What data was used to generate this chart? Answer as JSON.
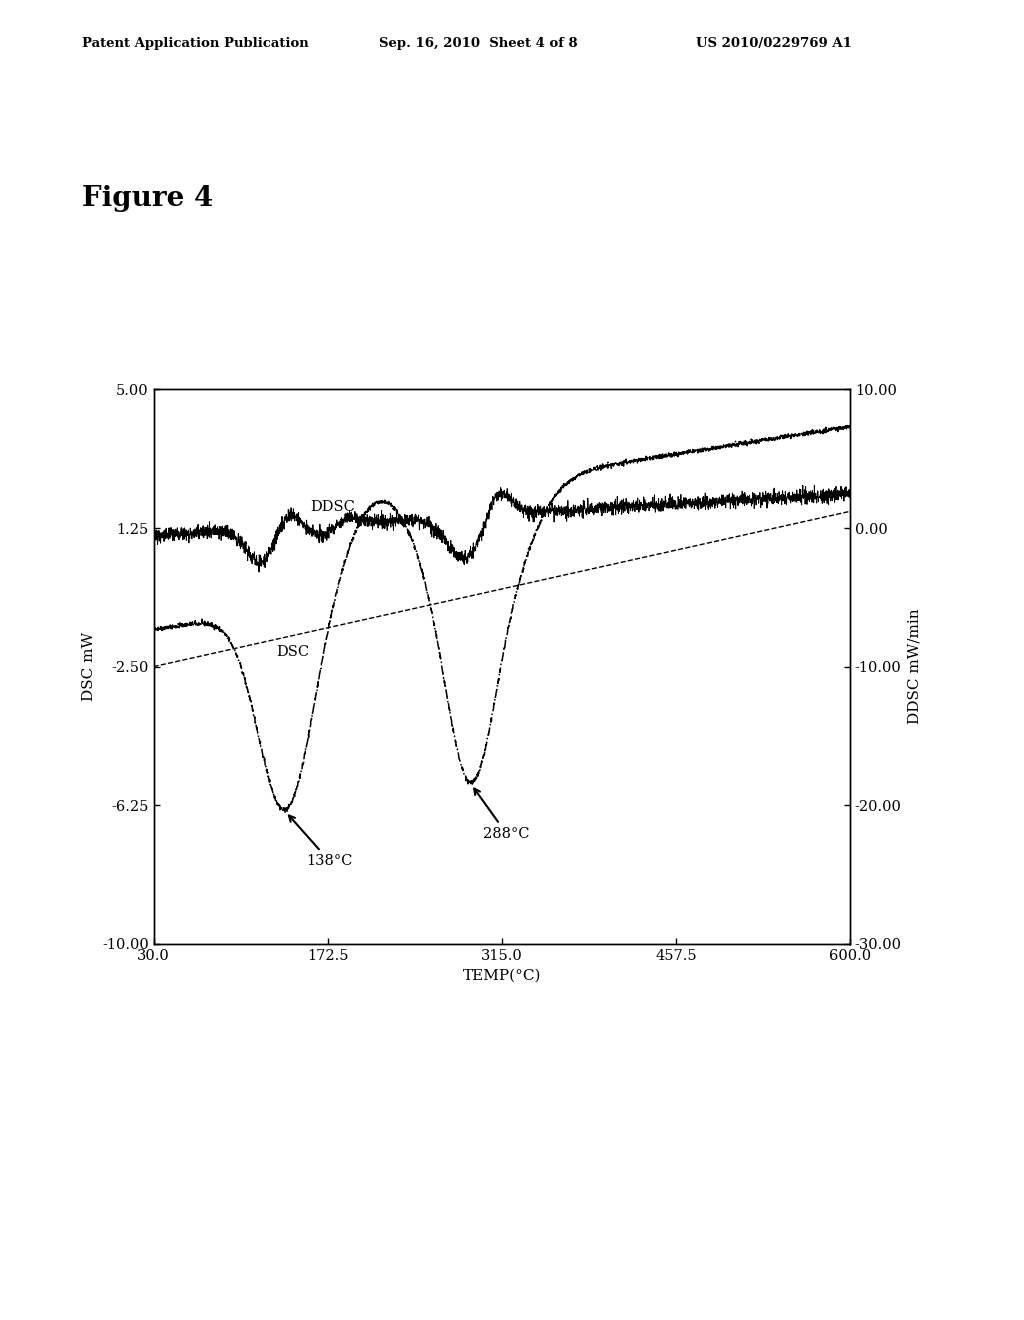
{
  "header_left": "Patent Application Publication",
  "header_center": "Sep. 16, 2010  Sheet 4 of 8",
  "header_right": "US 2010/0229769 A1",
  "figure_label": "Figure 4",
  "xlabel": "TEMP(°C)",
  "ylabel_left": "DSC mW",
  "ylabel_right": "DDSC mW/min",
  "xlim": [
    30.0,
    600.0
  ],
  "ylim_left": [
    -10.0,
    5.0
  ],
  "ylim_right": [
    -30.0,
    10.0
  ],
  "xticks": [
    30.0,
    172.5,
    315.0,
    457.5,
    600.0
  ],
  "yticks_left": [
    -10.0,
    -6.25,
    -2.5,
    1.25,
    5.0
  ],
  "yticks_right": [
    -30.0,
    -20.0,
    -10.0,
    0.0,
    10.0
  ],
  "annotation1_temp": 138,
  "annotation1_label": "138°C",
  "annotation2_temp": 288,
  "annotation2_label": "288°C",
  "ddsc_label": "DDSC",
  "dsc_label": "DSC",
  "background_color": "#ffffff",
  "line_color": "#000000"
}
